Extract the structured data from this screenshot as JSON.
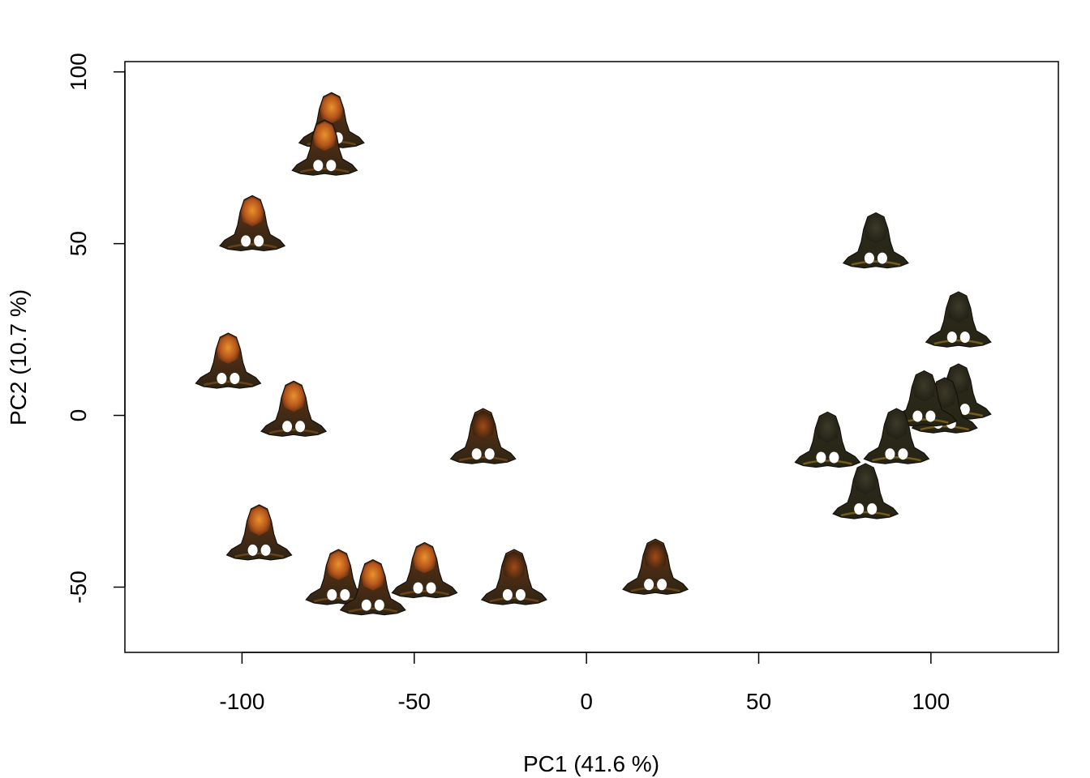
{
  "chart_data": {
    "type": "scatter",
    "title": "",
    "xlabel": "PC1 (41.6 %)",
    "ylabel": "PC2 (10.7 %)",
    "xlim": [
      -134,
      137
    ],
    "ylim": [
      -69,
      103
    ],
    "xticks": [
      -100,
      -50,
      0,
      50,
      100
    ],
    "yticks": [
      -50,
      0,
      50,
      100
    ],
    "grid": false,
    "marker": "specimen-image",
    "colors": {
      "orange_head": "#b5561c",
      "orange_glow": "#e8922c",
      "dark_body": "#2a2a1a",
      "dark_head": "#3a3320",
      "rim": "#8a6a20"
    },
    "points": [
      {
        "x": -74,
        "y": 85,
        "style": "orange"
      },
      {
        "x": -76,
        "y": 77,
        "style": "orange"
      },
      {
        "x": -97,
        "y": 55,
        "style": "orange"
      },
      {
        "x": -104,
        "y": 15,
        "style": "orange"
      },
      {
        "x": -85,
        "y": 1,
        "style": "orange"
      },
      {
        "x": -95,
        "y": -35,
        "style": "orange"
      },
      {
        "x": -72,
        "y": -48,
        "style": "orange"
      },
      {
        "x": -62,
        "y": -51,
        "style": "orange"
      },
      {
        "x": -47,
        "y": -46,
        "style": "orange"
      },
      {
        "x": -30,
        "y": -7,
        "style": "mixed"
      },
      {
        "x": -21,
        "y": -48,
        "style": "mixed"
      },
      {
        "x": 20,
        "y": -45,
        "style": "mixed"
      },
      {
        "x": 84,
        "y": 50,
        "style": "dark"
      },
      {
        "x": 108,
        "y": 27,
        "style": "dark"
      },
      {
        "x": 108,
        "y": 6,
        "style": "dark"
      },
      {
        "x": 104,
        "y": 2,
        "style": "dark"
      },
      {
        "x": 98,
        "y": 4,
        "style": "dark"
      },
      {
        "x": 90,
        "y": -7,
        "style": "dark"
      },
      {
        "x": 70,
        "y": -8,
        "style": "dark"
      },
      {
        "x": 81,
        "y": -23,
        "style": "dark"
      }
    ]
  }
}
